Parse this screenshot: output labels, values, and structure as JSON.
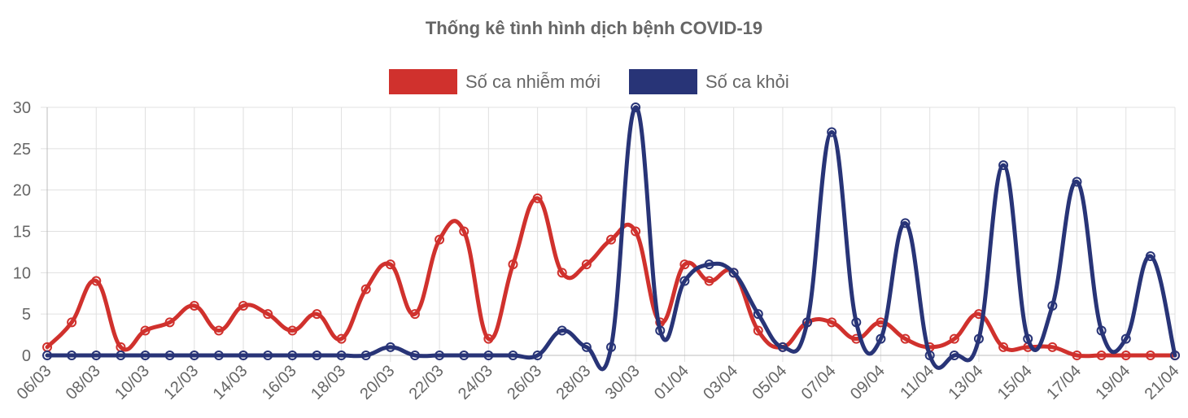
{
  "chart_data": {
    "type": "line",
    "title": "Thống kê tình hình dịch bệnh COVID-19",
    "legend_position": "top",
    "grid": true,
    "ylim": [
      0,
      30
    ],
    "yticks": [
      0,
      5,
      10,
      15,
      20,
      25,
      30
    ],
    "x_tick_labels": [
      "06/03",
      "08/03",
      "10/03",
      "12/03",
      "14/03",
      "16/03",
      "18/03",
      "20/03",
      "22/03",
      "24/03",
      "26/03",
      "28/03",
      "30/03",
      "01/04",
      "03/04",
      "05/04",
      "07/04",
      "09/04",
      "11/04",
      "13/04",
      "15/04",
      "17/04",
      "19/04",
      "21/04"
    ],
    "x": [
      "06/03",
      "07/03",
      "08/03",
      "09/03",
      "10/03",
      "11/03",
      "12/03",
      "13/03",
      "14/03",
      "15/03",
      "16/03",
      "17/03",
      "18/03",
      "19/03",
      "20/03",
      "21/03",
      "22/03",
      "23/03",
      "24/03",
      "25/03",
      "26/03",
      "27/03",
      "28/03",
      "29/03",
      "30/03",
      "31/03",
      "01/04",
      "02/04",
      "03/04",
      "04/04",
      "05/04",
      "06/04",
      "07/04",
      "08/04",
      "09/04",
      "10/04",
      "11/04",
      "12/04",
      "13/04",
      "14/04",
      "15/04",
      "16/04",
      "17/04",
      "18/04",
      "19/04",
      "20/04",
      "21/04"
    ],
    "series": [
      {
        "name": "Số ca nhiễm mới",
        "color": "#d0312d",
        "values": [
          1,
          4,
          9,
          1,
          3,
          4,
          6,
          3,
          6,
          5,
          3,
          5,
          2,
          8,
          11,
          5,
          14,
          15,
          2,
          11,
          19,
          10,
          11,
          14,
          15,
          4,
          11,
          9,
          10,
          3,
          1,
          4,
          4,
          2,
          4,
          2,
          1,
          2,
          5,
          1,
          1,
          1,
          0,
          0,
          0,
          0,
          0
        ]
      },
      {
        "name": "Số ca khỏi",
        "color": "#283477",
        "values": [
          0,
          0,
          0,
          0,
          0,
          0,
          0,
          0,
          0,
          0,
          0,
          0,
          0,
          0,
          1,
          0,
          0,
          0,
          0,
          0,
          0,
          3,
          1,
          1,
          30,
          3,
          9,
          11,
          10,
          5,
          1,
          4,
          27,
          4,
          2,
          16,
          0,
          0,
          2,
          23,
          2,
          6,
          21,
          3,
          2,
          12,
          0
        ]
      }
    ]
  }
}
